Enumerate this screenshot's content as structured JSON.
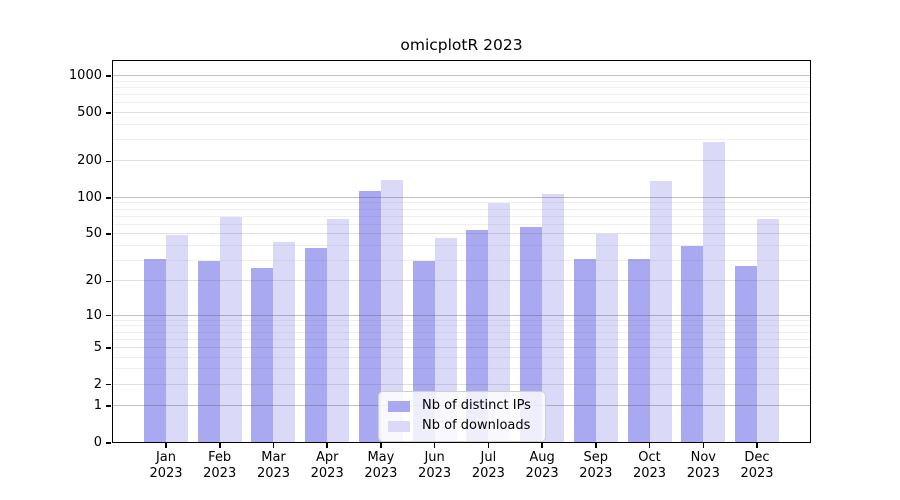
{
  "chart_data": {
    "type": "bar",
    "title": "omicplotR 2023",
    "categories": [
      "Jan",
      "Feb",
      "Mar",
      "Apr",
      "May",
      "Jun",
      "Jul",
      "Aug",
      "Sep",
      "Oct",
      "Nov",
      "Dec"
    ],
    "category_year": "2023",
    "series": [
      {
        "name": "Nb of distinct IPs",
        "color": "#A9A9F1",
        "values": [
          31,
          30,
          26,
          38,
          114,
          30,
          54,
          57,
          31,
          31,
          40,
          27
        ]
      },
      {
        "name": "Nb of downloads",
        "color": "#DADAF8",
        "values": [
          49,
          69,
          43,
          67,
          139,
          46,
          90,
          108,
          50,
          137,
          290,
          67
        ]
      }
    ],
    "xlabel": "",
    "ylabel": "",
    "y_ticks": [
      0,
      1,
      2,
      5,
      10,
      20,
      50,
      100,
      200,
      500,
      1000
    ],
    "y_scale": "log10(value+1)",
    "y_axis_top": 1350,
    "ylim": [
      0,
      1350
    ],
    "grid": true,
    "legend_position": "inside-bottom-center"
  }
}
